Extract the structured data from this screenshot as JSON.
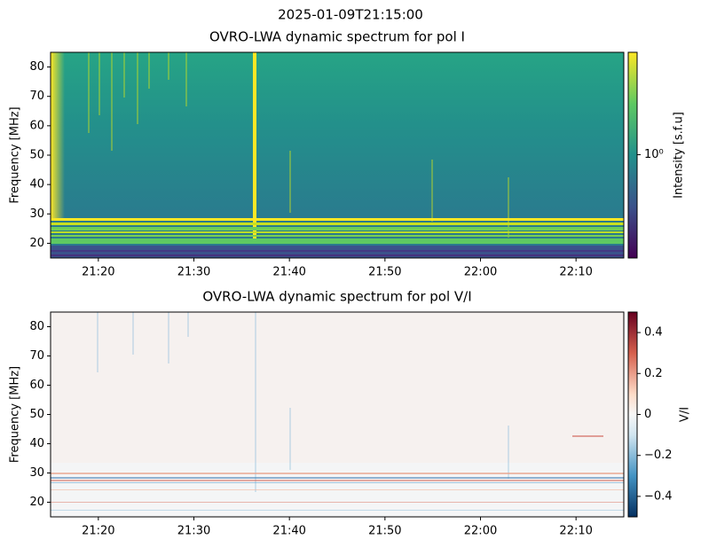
{
  "figure_title": "2025-01-09T21:15:00",
  "chart_data": [
    {
      "type": "heatmap",
      "title": "OVRO-LWA dynamic spectrum for pol I",
      "y_label": "Frequency [MHz]",
      "ylim": [
        15,
        85
      ],
      "yticks": [
        20,
        30,
        40,
        50,
        60,
        70,
        80
      ],
      "xlim": [
        1275,
        1335
      ],
      "xticks": [
        {
          "value": 1280,
          "label": "21:20"
        },
        {
          "value": 1290,
          "label": "21:30"
        },
        {
          "value": 1300,
          "label": "21:40"
        },
        {
          "value": 1310,
          "label": "21:50"
        },
        {
          "value": 1320,
          "label": "22:00"
        },
        {
          "value": 1330,
          "label": "22:10"
        }
      ],
      "colorbar": {
        "label": "Intensity [s.f.u]",
        "scale": "log",
        "colormap": "viridis",
        "lim": [
          0.3,
          3.3
        ],
        "ticks": [
          {
            "value": 1,
            "label": "10⁰"
          }
        ]
      }
    },
    {
      "type": "heatmap",
      "title": "OVRO-LWA dynamic spectrum for pol V/I",
      "y_label": "Frequency [MHz]",
      "ylim": [
        15,
        85
      ],
      "yticks": [
        20,
        30,
        40,
        50,
        60,
        70,
        80
      ],
      "xlim": [
        1275,
        1335
      ],
      "xticks": [
        {
          "value": 1280,
          "label": "21:20"
        },
        {
          "value": 1290,
          "label": "21:30"
        },
        {
          "value": 1300,
          "label": "21:40"
        },
        {
          "value": 1310,
          "label": "21:50"
        },
        {
          "value": 1320,
          "label": "22:00"
        },
        {
          "value": 1330,
          "label": "22:10"
        }
      ],
      "colorbar": {
        "label": "V/I",
        "scale": "linear",
        "colormap": "RdBu_r",
        "lim": [
          -0.5,
          0.5
        ],
        "ticks": [
          {
            "value": -0.4,
            "label": "−0.4"
          },
          {
            "value": -0.2,
            "label": "−0.2"
          },
          0.0,
          0.2,
          0.4
        ]
      }
    }
  ]
}
